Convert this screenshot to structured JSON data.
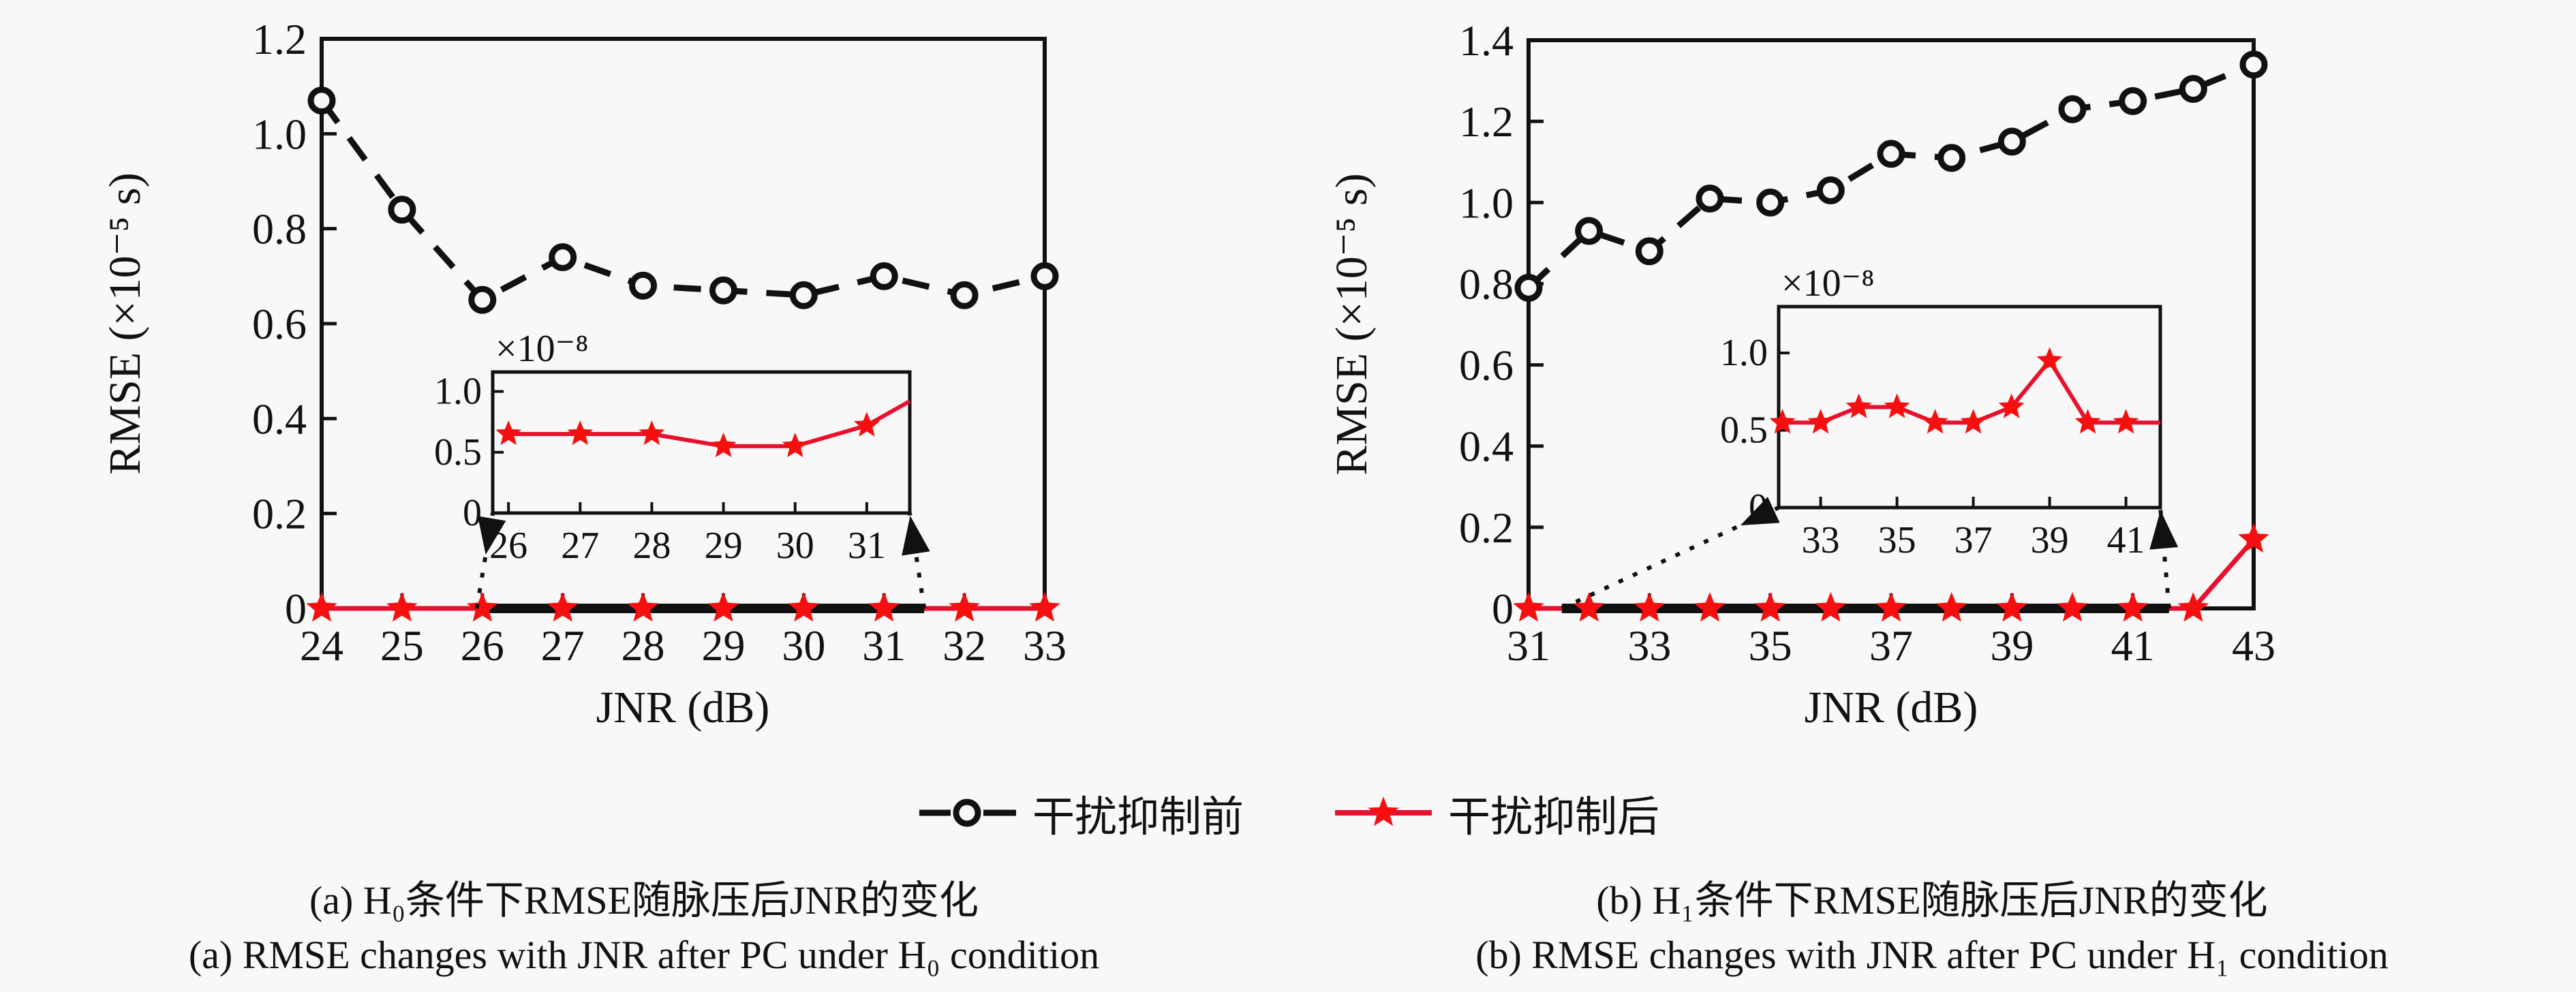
{
  "page": {
    "bg": "#f8f8f8",
    "fg": "#111111",
    "line_red": "#e8112d",
    "star_red": "#f50f0f"
  },
  "legend": {
    "items": [
      {
        "label": "干扰抑制前",
        "marker": "dashed-circle"
      },
      {
        "label": "干扰抑制后",
        "marker": "red-star"
      }
    ]
  },
  "captions": {
    "a": {
      "zh": "(a) H₀条件下RMSE随脉压后JNR的变化",
      "en": "(a) RMSE changes with JNR after PC under H₀ condition"
    },
    "b": {
      "zh": "(b) H₁条件下RMSE随脉压后JNR的变化",
      "en": "(b) RMSE changes with JNR after PC under H₁ condition"
    }
  },
  "chart_data": [
    {
      "id": "a",
      "type": "line",
      "xlabel": "JNR (dB)",
      "ylabel": "RMSE (×10⁻⁵ s)",
      "xlim": [
        24,
        33
      ],
      "ylim": [
        0,
        1.2
      ],
      "xticks": [
        24,
        25,
        26,
        27,
        28,
        29,
        30,
        31,
        32,
        33
      ],
      "xticklabels": [
        "24",
        "25",
        "26",
        "27",
        "28",
        "29",
        "30",
        "31",
        "32",
        "33"
      ],
      "yticks": [
        0,
        0.2,
        0.4,
        0.6,
        0.8,
        1.0,
        1.2
      ],
      "yticklabels": [
        "0",
        "0.2",
        "0.4",
        "0.6",
        "0.8",
        "1.0",
        "1.2"
      ],
      "legend_position": "none",
      "grid": false,
      "series": [
        {
          "name": "干扰抑制前",
          "style": "dashed-circle",
          "x": [
            24,
            25,
            26,
            27,
            28,
            29,
            30,
            31,
            32,
            33
          ],
          "y": [
            1.07,
            0.84,
            0.65,
            0.74,
            0.68,
            0.67,
            0.66,
            0.7,
            0.66,
            0.7
          ]
        },
        {
          "name": "干扰抑制后",
          "style": "red-star",
          "x": [
            24,
            25,
            26,
            27,
            28,
            29,
            30,
            31,
            32,
            33
          ],
          "y": [
            0,
            0,
            0,
            0,
            0,
            0,
            0,
            0,
            0,
            0
          ]
        }
      ],
      "inset": {
        "scale_label": "×10⁻⁸",
        "xlim": [
          25.78,
          31.6
        ],
        "ylim": [
          0,
          1.16
        ],
        "xticks": [
          26,
          27,
          28,
          29,
          30,
          31
        ],
        "xticklabels": [
          "26",
          "27",
          "28",
          "29",
          "30",
          "31"
        ],
        "yticks": [
          0,
          0.5,
          1.0
        ],
        "yticklabels": [
          "0",
          "0.5",
          "1.0"
        ],
        "line_x": [
          26,
          27,
          28,
          29,
          30,
          31,
          31.6
        ],
        "line_y": [
          0.65,
          0.65,
          0.65,
          0.55,
          0.55,
          0.72,
          0.92
        ],
        "marker_x": [
          26,
          27,
          28,
          29,
          30,
          31
        ],
        "marker_y": [
          0.65,
          0.65,
          0.65,
          0.55,
          0.55,
          0.72
        ],
        "zoom_region_x": [
          25.93,
          31.5
        ]
      }
    },
    {
      "id": "b",
      "type": "line",
      "xlabel": "JNR (dB)",
      "ylabel": "RMSE (×10⁻⁵ s)",
      "xlim": [
        31,
        43
      ],
      "ylim": [
        0,
        1.4
      ],
      "xticks": [
        31,
        33,
        35,
        37,
        39,
        41,
        43
      ],
      "xticklabels": [
        "31",
        "33",
        "35",
        "37",
        "39",
        "41",
        "43"
      ],
      "yticks": [
        0,
        0.2,
        0.4,
        0.6,
        0.8,
        1.0,
        1.2,
        1.4
      ],
      "yticklabels": [
        "0",
        "0.2",
        "0.4",
        "0.6",
        "0.8",
        "1.0",
        "1.2",
        "1.4"
      ],
      "legend_position": "none",
      "grid": false,
      "series": [
        {
          "name": "干扰抑制前",
          "style": "dashed-circle",
          "x": [
            31,
            32,
            33,
            34,
            35,
            36,
            37,
            38,
            39,
            40,
            41,
            42,
            43
          ],
          "y": [
            0.79,
            0.93,
            0.88,
            1.01,
            1.0,
            1.03,
            1.12,
            1.11,
            1.15,
            1.23,
            1.25,
            1.28,
            1.34
          ]
        },
        {
          "name": "干扰抑制后",
          "style": "red-star",
          "x": [
            31,
            32,
            33,
            34,
            35,
            36,
            37,
            38,
            39,
            40,
            41,
            42,
            43
          ],
          "y": [
            0,
            0,
            0,
            0,
            0,
            0,
            0,
            0,
            0,
            0,
            0,
            0,
            0.17
          ]
        }
      ],
      "inset": {
        "scale_label": "×10⁻⁸",
        "xlim": [
          31.9,
          41.9
        ],
        "ylim": [
          0,
          1.3
        ],
        "xticks": [
          33,
          35,
          37,
          39,
          41
        ],
        "xticklabels": [
          "33",
          "35",
          "37",
          "39",
          "41"
        ],
        "yticks": [
          0,
          0.5,
          1.0
        ],
        "yticklabels": [
          "0",
          "0.5",
          "1.0"
        ],
        "line_x": [
          31.9,
          32,
          33,
          34,
          35,
          36,
          37,
          38,
          39,
          40,
          41,
          41.9
        ],
        "line_y": [
          0.55,
          0.55,
          0.55,
          0.65,
          0.65,
          0.55,
          0.55,
          0.65,
          0.95,
          0.55,
          0.55,
          0.55
        ],
        "marker_x": [
          32,
          33,
          34,
          35,
          36,
          37,
          38,
          39,
          40,
          41
        ],
        "marker_y": [
          0.55,
          0.55,
          0.65,
          0.65,
          0.55,
          0.55,
          0.65,
          0.95,
          0.55,
          0.55
        ],
        "zoom_region_x": [
          31.55,
          41.6
        ]
      }
    }
  ]
}
